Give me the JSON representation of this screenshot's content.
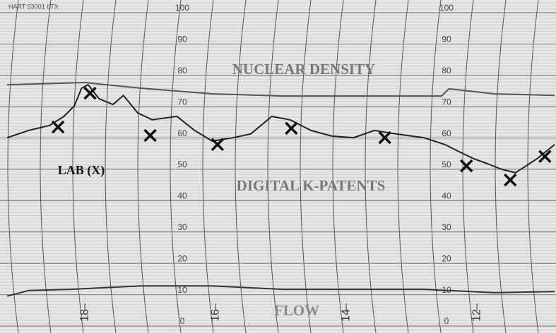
{
  "chart_data": {
    "type": "line",
    "annotations": [
      "HART 53001 6TX"
    ],
    "xlim": [
      19.19,
      10.79
    ],
    "xticks": [
      18,
      16,
      14,
      12
    ],
    "ylim": [
      0,
      100
    ],
    "yticks": [
      0,
      10,
      20,
      30,
      40,
      50,
      60,
      70,
      80,
      90,
      100
    ],
    "grid": true,
    "series": [
      {
        "name": "NUCLEAR DENSITY",
        "color": "#555555",
        "x": [
          19.19,
          18,
          17.14,
          16.05,
          14.97,
          12.54,
          12.43,
          11.73,
          10.81
        ],
        "values": [
          77,
          77.7,
          75.9,
          74.1,
          73.4,
          73.4,
          75.7,
          74.1,
          73.6
        ]
      },
      {
        "name": "DIGITAL K-PATENTS",
        "color": "#222222",
        "x": [
          19.19,
          18.86,
          18.54,
          18.32,
          18.16,
          18.05,
          17.95,
          17.78,
          17.57,
          17.41,
          17.19,
          16.97,
          16.59,
          16.32,
          16.05,
          15.73,
          15.46,
          15.14,
          14.86,
          14.54,
          14.22,
          13.89,
          13.57,
          13.24,
          12.81,
          12.49,
          12.27,
          12.05,
          11.84,
          11.62,
          11.41,
          11.08,
          10.81
        ],
        "values": [
          60.1,
          62.4,
          64.0,
          66.9,
          70.3,
          75.9,
          77.0,
          72.5,
          70.7,
          73.6,
          68.0,
          65.8,
          66.9,
          62.4,
          59.0,
          60.1,
          61.3,
          66.9,
          65.8,
          62.4,
          60.6,
          60.1,
          62.4,
          61.3,
          60.1,
          57.9,
          55.6,
          53.4,
          51.8,
          50.0,
          48.9,
          53.4,
          57.9
        ]
      },
      {
        "name": "LAB (X)",
        "color": "#111111",
        "type": "scatter",
        "x": [
          18.41,
          17.92,
          17.0,
          15.97,
          14.84,
          13.41,
          12.16,
          11.49,
          10.96
        ],
        "values": [
          63.5,
          74.3,
          60.8,
          57.9,
          63.1,
          60.1,
          51.1,
          46.6,
          54.1
        ]
      },
      {
        "name": "FLOW",
        "color": "#333333",
        "x": [
          19.19,
          18.86,
          18.22,
          17.14,
          16.05,
          14.97,
          13.89,
          12.81,
          11.73,
          10.81
        ],
        "values": [
          9.5,
          11.3,
          11.7,
          12.8,
          12.8,
          11.7,
          11.7,
          11.7,
          10.6,
          11.0
        ]
      }
    ]
  }
}
